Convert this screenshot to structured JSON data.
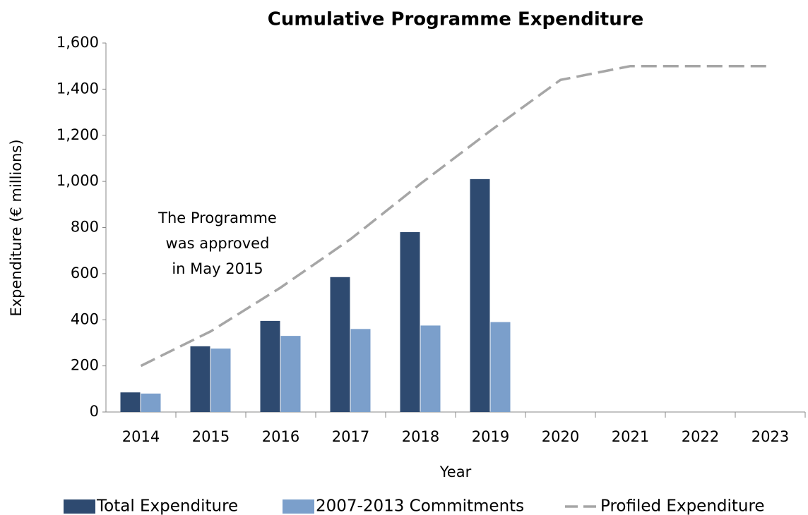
{
  "chart_data": {
    "type": "bar",
    "title": "Cumulative Programme Expenditure",
    "x_label": "Year",
    "y_label": "Expenditure (€ millions)",
    "annotation": [
      "The Programme",
      "was approved",
      "in May 2015"
    ],
    "categories": [
      "2014",
      "2015",
      "2016",
      "2017",
      "2018",
      "2019",
      "2020",
      "2021",
      "2022",
      "2023"
    ],
    "series": [
      {
        "name": "Total Expenditure",
        "type": "bar",
        "color": "#2e4a70",
        "values": [
          85,
          285,
          395,
          585,
          780,
          1010,
          null,
          null,
          null,
          null
        ]
      },
      {
        "name": "2007-2013 Commitments",
        "type": "bar",
        "color": "#7b9fcb",
        "values": [
          80,
          275,
          330,
          360,
          375,
          390,
          null,
          null,
          null,
          null
        ]
      },
      {
        "name": "Profiled Expenditure",
        "type": "line",
        "color": "#a6a6a6",
        "dashed": true,
        "values": [
          200,
          350,
          540,
          750,
          990,
          1220,
          1440,
          1500,
          1500,
          1500
        ]
      }
    ],
    "ylim": [
      0,
      1600
    ],
    "yticks": [
      0,
      {
        "value": 200,
        "label": "200"
      },
      400,
      600,
      800,
      {
        "value": 1000,
        "label": "1,000"
      },
      {
        "value": 1200,
        "label": "1,200"
      },
      {
        "value": 1400,
        "label": "1,400"
      },
      {
        "value": 1600,
        "label": "1,600"
      }
    ],
    "legend": "bottom"
  }
}
